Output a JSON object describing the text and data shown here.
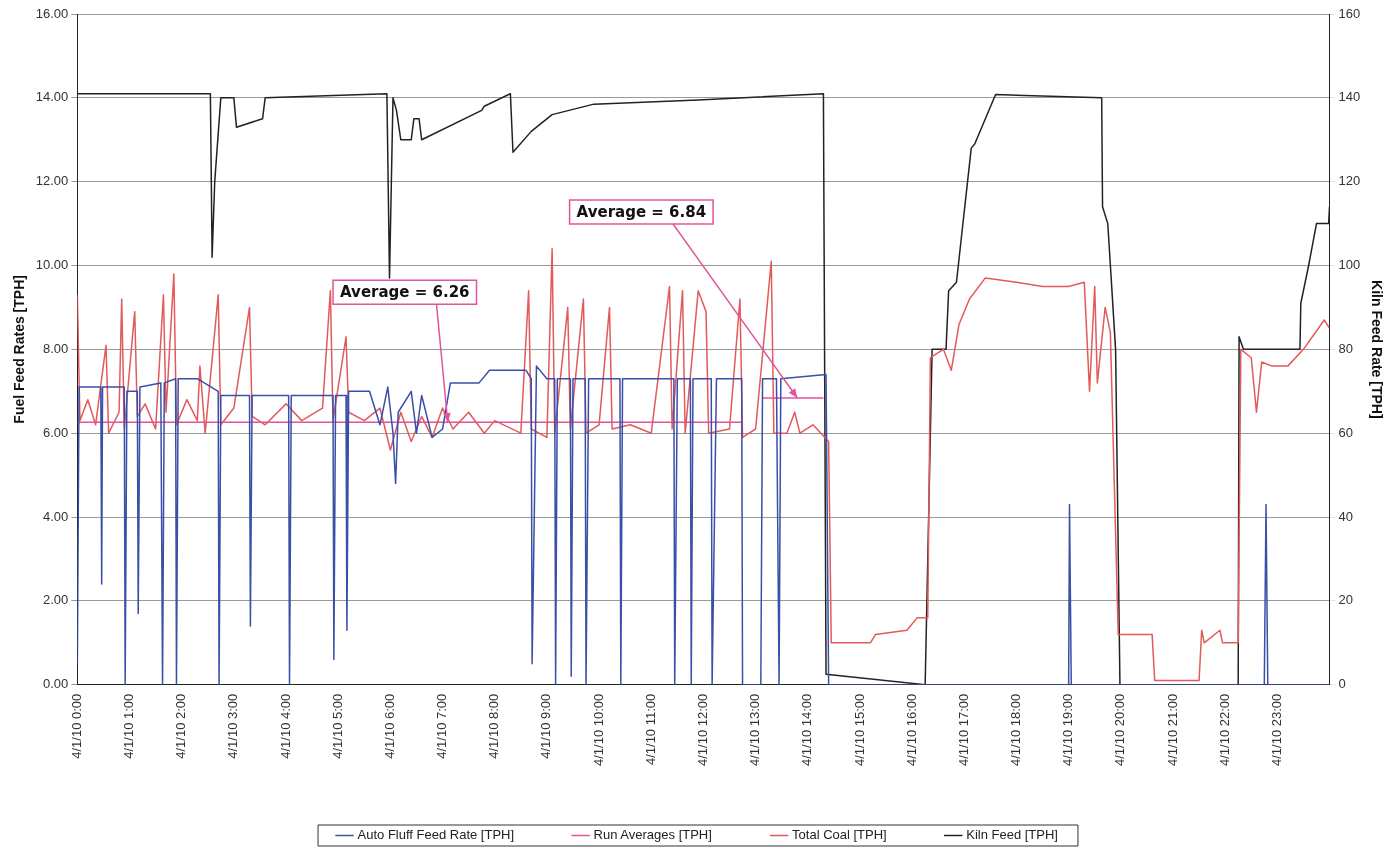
{
  "chart_data": {
    "type": "line",
    "ylabel": "Fuel Feed Rates [TPH]",
    "y2label": "Kiln Feed Rate [TPH]",
    "xlim": [
      "--04-01T00:00",
      "--04-02T00:00"
    ],
    "xticks": [
      {
        "value": "--04-01T00:00",
        "label": "4/1/10 0:00"
      },
      {
        "value": "--04-01T01:00",
        "label": "4/1/10 1:00"
      },
      {
        "value": "--04-01T02:00",
        "label": "4/1/10 2:00"
      },
      {
        "value": "--04-01T03:00",
        "label": "4/1/10 3:00"
      },
      {
        "value": "--04-01T04:00",
        "label": "4/1/10 4:00"
      },
      {
        "value": "--04-01T05:00",
        "label": "4/1/10 5:00"
      },
      {
        "value": "--04-01T06:00",
        "label": "4/1/10 6:00"
      },
      {
        "value": "--04-01T07:00",
        "label": "4/1/10 7:00"
      },
      {
        "value": "--04-01T08:00",
        "label": "4/1/10 8:00"
      },
      {
        "value": "--04-01T09:00",
        "label": "4/1/10 9:00"
      },
      {
        "value": "--04-01T10:00",
        "label": "4/1/10 10:00"
      },
      {
        "value": "--04-01T11:00",
        "label": "4/1/10 11:00"
      },
      {
        "value": "--04-01T12:00",
        "label": "4/1/10 12:00"
      },
      {
        "value": "--04-01T13:00",
        "label": "4/1/10 13:00"
      },
      {
        "value": "--04-01T14:00",
        "label": "4/1/10 14:00"
      },
      {
        "value": "--04-01T15:00",
        "label": "4/1/10 15:00"
      },
      {
        "value": "--04-01T16:00",
        "label": "4/1/10 16:00"
      },
      {
        "value": "--04-01T17:00",
        "label": "4/1/10 17:00"
      },
      {
        "value": "--04-01T18:00",
        "label": "4/1/10 18:00"
      },
      {
        "value": "--04-01T19:00",
        "label": "4/1/10 19:00"
      },
      {
        "value": "--04-01T20:00",
        "label": "4/1/10 20:00"
      },
      {
        "value": "--04-01T21:00",
        "label": "4/1/10 21:00"
      },
      {
        "value": "--04-01T22:00",
        "label": "4/1/10 22:00"
      },
      {
        "value": "--04-01T23:00",
        "label": "4/1/10 23:00"
      }
    ],
    "ylim": [
      0,
      16
    ],
    "yticks": [
      {
        "value": 0,
        "label": "0.00"
      },
      {
        "value": 2,
        "label": "2.00"
      },
      {
        "value": 4,
        "label": "4.00"
      },
      {
        "value": 6,
        "label": "6.00"
      },
      {
        "value": 8,
        "label": "8.00"
      },
      {
        "value": 10,
        "label": "10.00"
      },
      {
        "value": 12,
        "label": "12.00"
      },
      {
        "value": 14,
        "label": "14.00"
      },
      {
        "value": 16,
        "label": "16.00"
      }
    ],
    "y2lim": [
      0,
      160
    ],
    "y2ticks": [
      0,
      20,
      40,
      60,
      80,
      100,
      120,
      140,
      160
    ],
    "grid": "y",
    "legend": "bottom",
    "marker": "none",
    "line_style": "solid",
    "annotations": [
      {
        "text": "Average = 6.26",
        "x": "--04-01T07:06",
        "y": 6.26
      },
      {
        "text": "Average = 6.84",
        "x": "--04-01T13:48",
        "y": 6.84
      }
    ],
    "series": [
      {
        "name": "Auto Fluff Feed Rate [TPH]",
        "color": "#3a4fa8",
        "x": [
          "--04-01T00:00",
          "--04-01T00:02",
          "--04-01T00:27",
          "--04-01T00:28",
          "--04-01T00:29",
          "--04-01T00:54",
          "--04-01T00:55",
          "--04-01T00:57",
          "--04-01T01:09",
          "--04-01T01:10",
          "--04-01T01:12",
          "--04-01T01:36",
          "--04-01T01:38",
          "--04-01T01:40",
          "--04-01T01:53",
          "--04-01T01:54",
          "--04-01T01:56",
          "--04-01T02:18",
          "--04-01T02:42",
          "--04-01T02:43",
          "--04-01T02:45",
          "--04-01T03:18",
          "--04-01T03:19",
          "--04-01T03:21",
          "--04-01T04:03",
          "--04-01T04:04",
          "--04-01T04:06",
          "--04-01T04:54",
          "--04-01T04:55",
          "--04-01T04:57",
          "--04-01T05:09",
          "--04-01T05:10",
          "--04-01T05:12",
          "--04-01T05:36",
          "--04-01T05:48",
          "--04-01T05:57",
          "--04-01T06:03",
          "--04-01T06:06",
          "--04-01T06:09",
          "--04-01T06:24",
          "--04-01T06:30",
          "--04-01T06:36",
          "--04-01T06:48",
          "--04-01T07:00",
          "--04-01T07:09",
          "--04-01T07:42",
          "--04-01T07:54",
          "--04-01T08:36",
          "--04-01T08:42",
          "--04-01T08:43",
          "--04-01T08:48",
          "--04-01T09:00",
          "--04-01T09:09",
          "--04-01T09:10",
          "--04-01T09:12",
          "--04-01T09:27",
          "--04-01T09:28",
          "--04-01T09:30",
          "--04-01T09:44",
          "--04-01T09:45",
          "--04-01T09:48",
          "--04-01T10:24",
          "--04-01T10:25",
          "--04-01T10:27",
          "--04-01T11:26",
          "--04-01T11:27",
          "--04-01T11:30",
          "--04-01T11:45",
          "--04-01T11:46",
          "--04-01T11:48",
          "--04-01T12:09",
          "--04-01T12:10",
          "--04-01T12:15",
          "--04-01T12:44",
          "--04-01T12:45",
          "--04-01T13:06",
          "--04-01T13:08",
          "--04-01T13:24",
          "--04-01T13:27",
          "--04-01T13:29",
          "--04-01T14:21",
          "--04-01T14:24",
          "--04-01T19:00",
          "--04-01T19:01",
          "--04-01T19:03",
          "--04-01T22:45",
          "--04-01T22:47",
          "--04-01T22:49",
          "--04-02T00:00"
        ],
        "values": [
          0.5,
          7.1,
          7.1,
          2.4,
          7.1,
          7.1,
          0,
          7.0,
          7.0,
          1.7,
          7.1,
          7.2,
          0,
          7.2,
          7.3,
          0,
          7.3,
          7.3,
          7.0,
          0,
          6.9,
          6.9,
          1.4,
          6.9,
          6.9,
          0,
          6.9,
          6.9,
          0.6,
          6.9,
          6.9,
          1.3,
          7.0,
          7.0,
          6.2,
          7.1,
          6.0,
          4.8,
          6.5,
          7.0,
          6.0,
          6.9,
          5.9,
          6.1,
          7.2,
          7.2,
          7.5,
          7.5,
          7.3,
          0.5,
          7.6,
          7.3,
          7.3,
          0,
          7.3,
          7.3,
          0.2,
          7.3,
          7.3,
          0,
          7.3,
          7.3,
          0,
          7.3,
          7.3,
          0,
          7.3,
          7.3,
          0,
          7.3,
          7.3,
          0,
          7.3,
          7.3,
          0,
          0,
          7.3,
          7.3,
          0,
          7.3,
          7.4,
          0,
          0,
          4.3,
          0,
          0,
          4.3,
          0,
          0
        ]
      },
      {
        "name": "Run Averages [TPH]",
        "color": "#e0559a",
        "x": [
          "--04-01T00:00",
          "--04-01T12:44",
          "--04-01T12:45",
          "--04-01T13:08",
          "--04-01T14:18"
        ],
        "values": [
          6.26,
          6.26,
          null,
          6.84,
          6.84
        ]
      },
      {
        "name": "Total Coal [TPH]",
        "color": "#e35a5a",
        "x": [
          "--04-01T00:00",
          "--04-01T00:03",
          "--04-01T00:12",
          "--04-01T00:21",
          "--04-01T00:33",
          "--04-01T00:36",
          "--04-01T00:48",
          "--04-01T00:51",
          "--04-01T00:54",
          "--04-01T01:06",
          "--04-01T01:09",
          "--04-01T01:18",
          "--04-01T01:30",
          "--04-01T01:39",
          "--04-01T01:42",
          "--04-01T01:51",
          "--04-01T01:54",
          "--04-01T02:06",
          "--04-01T02:18",
          "--04-01T02:21",
          "--04-01T02:27",
          "--04-01T02:42",
          "--04-01T02:45",
          "--04-01T03:00",
          "--04-01T03:18",
          "--04-01T03:21",
          "--04-01T03:36",
          "--04-01T04:00",
          "--04-01T04:18",
          "--04-01T04:42",
          "--04-01T04:51",
          "--04-01T04:54",
          "--04-01T05:09",
          "--04-01T05:12",
          "--04-01T05:30",
          "--04-01T05:48",
          "--04-01T06:00",
          "--04-01T06:12",
          "--04-01T06:24",
          "--04-01T06:36",
          "--04-01T06:48",
          "--04-01T07:00",
          "--04-01T07:12",
          "--04-01T07:30",
          "--04-01T07:48",
          "--04-01T08:00",
          "--04-01T08:30",
          "--04-01T08:39",
          "--04-01T08:42",
          "--04-01T09:00",
          "--04-01T09:06",
          "--04-01T09:09",
          "--04-01T09:24",
          "--04-01T09:27",
          "--04-01T09:42",
          "--04-01T09:45",
          "--04-01T10:00",
          "--04-01T10:12",
          "--04-01T10:15",
          "--04-01T10:36",
          "--04-01T11:00",
          "--04-01T11:21",
          "--04-01T11:24",
          "--04-01T11:36",
          "--04-01T11:39",
          "--04-01T11:54",
          "--04-01T12:03",
          "--04-01T12:06",
          "--04-01T12:30",
          "--04-01T12:42",
          "--04-01T12:45",
          "--04-01T13:00",
          "--04-01T13:18",
          "--04-01T13:21",
          "--04-01T13:36",
          "--04-01T13:45",
          "--04-01T13:51",
          "--04-01T14:06",
          "--04-01T14:24",
          "--04-01T14:27",
          "--04-01T15:12",
          "--04-01T15:18",
          "--04-01T15:54",
          "--04-01T16:06",
          "--04-01T16:18",
          "--04-01T16:21",
          "--04-01T16:36",
          "--04-01T16:45",
          "--04-01T16:54",
          "--04-01T17:06",
          "--04-01T17:24",
          "--04-01T18:00",
          "--04-01T18:30",
          "--04-01T19:00",
          "--04-01T19:18",
          "--04-01T19:24",
          "--04-01T19:30",
          "--04-01T19:33",
          "--04-01T19:42",
          "--04-01T19:48",
          "--04-01T19:57",
          "--04-01T20:36",
          "--04-01T20:39",
          "--04-01T21:30",
          "--04-01T21:33",
          "--04-01T21:36",
          "--04-01T21:54",
          "--04-01T21:57",
          "--04-01T22:15",
          "--04-01T22:18",
          "--04-01T22:30",
          "--04-01T22:36",
          "--04-01T22:42",
          "--04-01T22:54",
          "--04-01T23:12",
          "--04-01T23:30",
          "--04-01T23:54",
          "--04-02T00:00"
        ],
        "values": [
          9.3,
          6.3,
          6.8,
          6.2,
          8.1,
          6.0,
          6.5,
          9.2,
          6.1,
          8.9,
          6.4,
          6.7,
          6.1,
          9.3,
          6.5,
          9.8,
          6.2,
          6.8,
          6.3,
          7.6,
          6.0,
          9.3,
          6.2,
          6.6,
          9.0,
          6.4,
          6.2,
          6.7,
          6.3,
          6.6,
          9.4,
          6.3,
          8.3,
          6.5,
          6.3,
          6.6,
          5.6,
          6.5,
          5.8,
          6.4,
          5.9,
          6.6,
          6.1,
          6.5,
          6.0,
          6.3,
          6.0,
          9.4,
          6.1,
          5.9,
          10.4,
          6.0,
          9.0,
          6.1,
          9.2,
          6.0,
          6.2,
          9.0,
          6.1,
          6.2,
          6.0,
          9.5,
          6.1,
          9.4,
          6.0,
          9.4,
          8.9,
          6.0,
          6.1,
          9.2,
          5.9,
          6.1,
          10.1,
          6.0,
          6.0,
          6.5,
          6.0,
          6.2,
          5.8,
          1.0,
          1.0,
          1.2,
          1.3,
          1.6,
          1.6,
          7.8,
          8.0,
          7.5,
          8.6,
          9.2,
          9.7,
          9.6,
          9.5,
          9.5,
          9.6,
          7.0,
          9.5,
          7.2,
          9.0,
          8.4,
          1.2,
          1.2,
          0.1,
          0.1,
          1.3,
          1.0,
          1.3,
          1.0,
          1.0,
          8.0,
          7.8,
          6.5,
          7.7,
          7.6,
          7.6,
          8.0,
          8.7,
          8.5
        ]
      },
      {
        "name": "Kiln Feed [TPH]",
        "color": "#222222",
        "axis": "y2",
        "x": [
          "--04-01T00:00",
          "--04-01T02:33",
          "--04-01T02:35",
          "--04-01T02:38",
          "--04-01T02:45",
          "--04-01T03:00",
          "--04-01T03:03",
          "--04-01T03:33",
          "--04-01T03:36",
          "--04-01T05:56",
          "--04-01T05:59",
          "--04-01T06:03",
          "--04-01T06:07",
          "--04-01T06:12",
          "--04-01T06:24",
          "--04-01T06:27",
          "--04-01T06:33",
          "--04-01T06:36",
          "--04-01T07:45",
          "--04-01T07:48",
          "--04-01T08:18",
          "--04-01T08:21",
          "--04-01T08:42",
          "--04-01T09:06",
          "--04-01T09:54",
          "--04-01T11:54",
          "--04-01T14:18",
          "--04-01T14:21",
          "--04-01T16:15",
          "--04-01T16:23",
          "--04-01T16:39",
          "--04-01T16:42",
          "--04-01T16:51",
          "--04-01T17:08",
          "--04-01T17:12",
          "--04-01T17:36",
          "--04-01T19:38",
          "--04-01T19:39",
          "--04-01T19:45",
          "--04-01T19:48",
          "--04-01T19:54",
          "--04-01T19:59",
          "--04-01T22:15",
          "--04-01T22:16",
          "--04-01T22:21",
          "--04-01T23:26",
          "--04-01T23:27",
          "--04-01T23:36",
          "--04-01T23:45",
          "--04-01T23:59",
          "--04-02T00:00"
        ],
        "values": [
          141,
          141,
          102,
          120,
          140,
          140,
          133,
          135,
          140,
          141,
          97,
          140,
          137,
          130,
          130,
          135,
          135,
          130,
          137,
          138,
          141,
          127,
          132,
          136,
          138.5,
          139.5,
          141,
          2.5,
          0,
          80,
          80,
          94,
          96,
          128,
          129,
          140.8,
          140,
          114,
          110,
          100,
          80,
          0,
          0,
          83,
          80,
          80,
          91,
          100,
          110,
          110,
          114
        ]
      }
    ]
  }
}
